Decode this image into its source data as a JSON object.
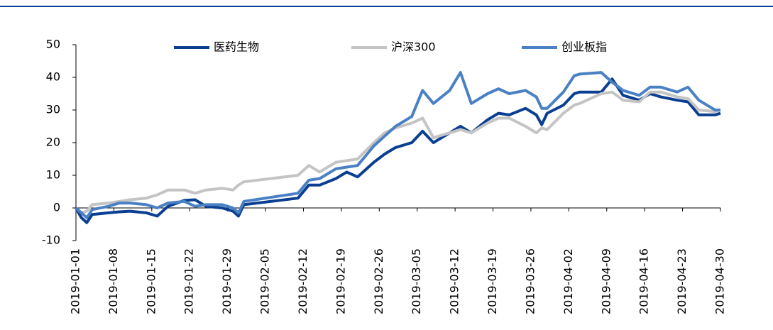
{
  "chart_data": {
    "type": "line",
    "x": [
      "2019-01-01",
      "2019-01-02",
      "2019-01-03",
      "2019-01-04",
      "2019-01-07",
      "2019-01-09",
      "2019-01-11",
      "2019-01-14",
      "2019-01-16",
      "2019-01-18",
      "2019-01-21",
      "2019-01-23",
      "2019-01-25",
      "2019-01-28",
      "2019-01-30",
      "2019-01-31",
      "2019-02-01",
      "2019-02-11",
      "2019-02-13",
      "2019-02-15",
      "2019-02-18",
      "2019-02-20",
      "2019-02-22",
      "2019-02-25",
      "2019-02-27",
      "2019-03-01",
      "2019-03-04",
      "2019-03-06",
      "2019-03-08",
      "2019-03-11",
      "2019-03-13",
      "2019-03-15",
      "2019-03-18",
      "2019-03-20",
      "2019-03-22",
      "2019-03-25",
      "2019-03-27",
      "2019-03-28",
      "2019-03-29",
      "2019-04-01",
      "2019-04-03",
      "2019-04-04",
      "2019-04-08",
      "2019-04-10",
      "2019-04-12",
      "2019-04-15",
      "2019-04-17",
      "2019-04-19",
      "2019-04-22",
      "2019-04-24",
      "2019-04-26",
      "2019-04-29",
      "2019-04-30"
    ],
    "series": [
      {
        "name": "医药生物",
        "color": "#0b3f92",
        "values": [
          0,
          -3,
          -4.5,
          -2,
          -1.5,
          -1.2,
          -1,
          -1.5,
          -2.5,
          0.5,
          2.3,
          2.5,
          0.5,
          0,
          -1,
          -2.5,
          1,
          3,
          7,
          7,
          9,
          11,
          9.5,
          14,
          16.5,
          18.5,
          20,
          23.5,
          20,
          23,
          25,
          23,
          27,
          29,
          28.5,
          30.5,
          28.5,
          25.5,
          29,
          31.5,
          35,
          35.5,
          35.5,
          39.5,
          34.5,
          33,
          35,
          34,
          33,
          32.5,
          28.5,
          28.5,
          29
        ]
      },
      {
        "name": "沪深300",
        "color": "#c4c4c4",
        "values": [
          0,
          -1.5,
          -1,
          1,
          1.5,
          2,
          2.5,
          3,
          4,
          5.5,
          5.5,
          4.5,
          5.5,
          6,
          5.5,
          7,
          8,
          10,
          13,
          11,
          14,
          14.5,
          15,
          20,
          23,
          24.5,
          26,
          27.5,
          21.5,
          23,
          24,
          23,
          26,
          27.5,
          27.5,
          25,
          23,
          24.5,
          24,
          29,
          31.5,
          32,
          35,
          35.5,
          33,
          32.5,
          35.5,
          35.5,
          34,
          33.5,
          30,
          29.5,
          30
        ]
      },
      {
        "name": "创业板指",
        "color": "#4a80c4",
        "values": [
          0,
          -1.5,
          -3,
          -0.5,
          0.5,
          1.5,
          1.5,
          1,
          0,
          1.5,
          2,
          0.5,
          1,
          1,
          0,
          -1.5,
          2,
          4.5,
          8.5,
          9,
          12,
          12.5,
          13,
          19,
          22,
          25,
          28,
          36,
          32,
          36,
          41.5,
          32,
          35,
          36.5,
          35,
          36,
          34,
          30.5,
          30.5,
          35.5,
          40.5,
          41,
          41.5,
          38.5,
          36,
          34.5,
          37,
          37,
          35.5,
          37,
          33,
          30,
          30
        ]
      }
    ],
    "xlim": [
      "2019-01-01",
      "2019-04-30"
    ],
    "xticks": [
      "2019-01-01",
      "2019-01-08",
      "2019-01-15",
      "2019-01-22",
      "2019-01-29",
      "2019-02-05",
      "2019-02-12",
      "2019-02-19",
      "2019-02-26",
      "2019-03-05",
      "2019-03-12",
      "2019-03-19",
      "2019-03-26",
      "2019-04-02",
      "2019-04-09",
      "2019-04-16",
      "2019-04-23",
      "2019-04-30"
    ],
    "ylim": [
      -10,
      50
    ],
    "yticks": [
      -10,
      0,
      10,
      20,
      30,
      40,
      50
    ]
  }
}
